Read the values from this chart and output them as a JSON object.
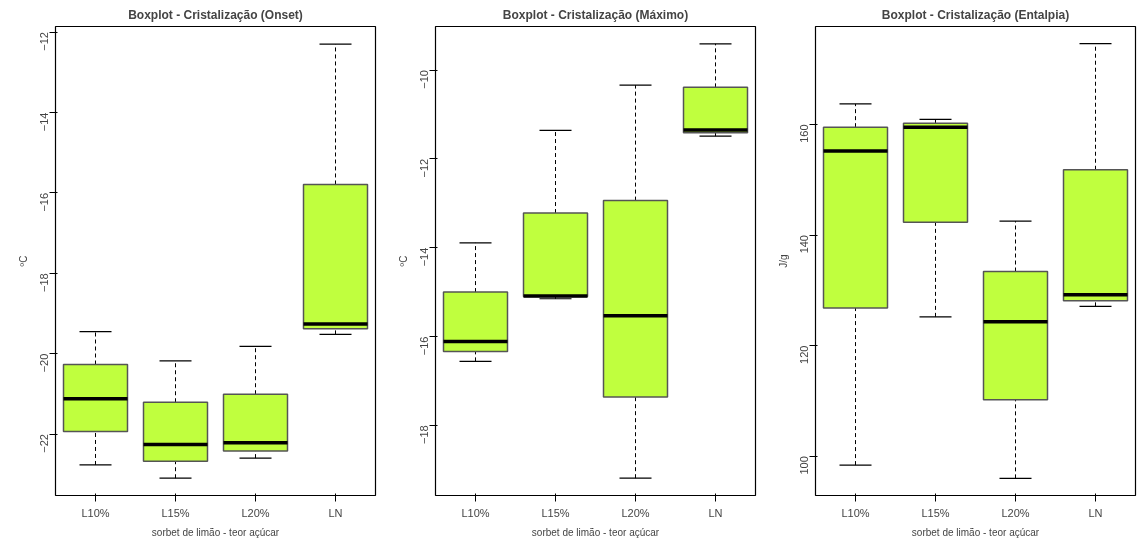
{
  "chart_data": [
    {
      "type": "box",
      "title": "Boxplot - Cristalização (Onset)",
      "xlabel": "sorbet de limão - teor açúcar",
      "ylabel": "ºC",
      "categories": [
        "L10%",
        "L15%",
        "L20%",
        "LN"
      ],
      "color": "#c0ff3e",
      "ylim": [
        -23.53,
        -11.86
      ],
      "yticks": [
        -22,
        -20,
        -18,
        -16,
        -14,
        -12
      ],
      "boxes": [
        {
          "low": -22.77,
          "q1": -21.94,
          "median": -21.12,
          "q3": -20.27,
          "high": -19.45
        },
        {
          "low": -23.1,
          "q1": -22.68,
          "median": -22.26,
          "q3": -21.21,
          "high": -20.18
        },
        {
          "low": -22.6,
          "q1": -22.42,
          "median": -22.22,
          "q3": -21.01,
          "high": -19.82
        },
        {
          "low": -19.52,
          "q1": -19.38,
          "median": -19.26,
          "q3": -15.79,
          "high": -12.3
        }
      ]
    },
    {
      "type": "box",
      "title": "Boxplot - Cristalização (Máximo)",
      "xlabel": "sorbet de limão - teor açúcar",
      "ylabel": "ºC",
      "categories": [
        "L10%",
        "L15%",
        "L20%",
        "LN"
      ],
      "color": "#c0ff3e",
      "ylim": [
        -19.58,
        -9.02
      ],
      "yticks": [
        -18,
        -16,
        -14,
        -12,
        -10
      ],
      "boxes": [
        {
          "low": -16.56,
          "q1": -16.34,
          "median": -16.11,
          "q3": -15.0,
          "high": -13.89
        },
        {
          "low": -15.15,
          "q1": -15.1,
          "median": -15.09,
          "q3": -13.22,
          "high": -11.36
        },
        {
          "low": -19.19,
          "q1": -17.36,
          "median": -15.53,
          "q3": -12.94,
          "high": -10.34
        },
        {
          "low": -11.49,
          "q1": -11.41,
          "median": -11.35,
          "q3": -10.39,
          "high": -9.41
        }
      ]
    },
    {
      "type": "box",
      "title": "Boxplot - Cristalização (Entalpia)",
      "xlabel": "sorbet de limão - teor açúcar",
      "ylabel": "J/g",
      "categories": [
        "L10%",
        "L15%",
        "L20%",
        "LN"
      ],
      "color": "#c0ff3e",
      "ylim": [
        92.9,
        177.7
      ],
      "yticks": [
        100,
        120,
        140,
        160
      ],
      "boxes": [
        {
          "low": 98.4,
          "q1": 126.8,
          "median": 155.2,
          "q3": 159.5,
          "high": 163.7
        },
        {
          "low": 125.2,
          "q1": 142.3,
          "median": 159.5,
          "q3": 160.2,
          "high": 160.9
        },
        {
          "low": 96.0,
          "q1": 110.2,
          "median": 124.3,
          "q3": 133.4,
          "high": 142.5
        },
        {
          "low": 127.1,
          "q1": 128.1,
          "median": 129.2,
          "q3": 151.8,
          "high": 174.6
        }
      ]
    }
  ]
}
